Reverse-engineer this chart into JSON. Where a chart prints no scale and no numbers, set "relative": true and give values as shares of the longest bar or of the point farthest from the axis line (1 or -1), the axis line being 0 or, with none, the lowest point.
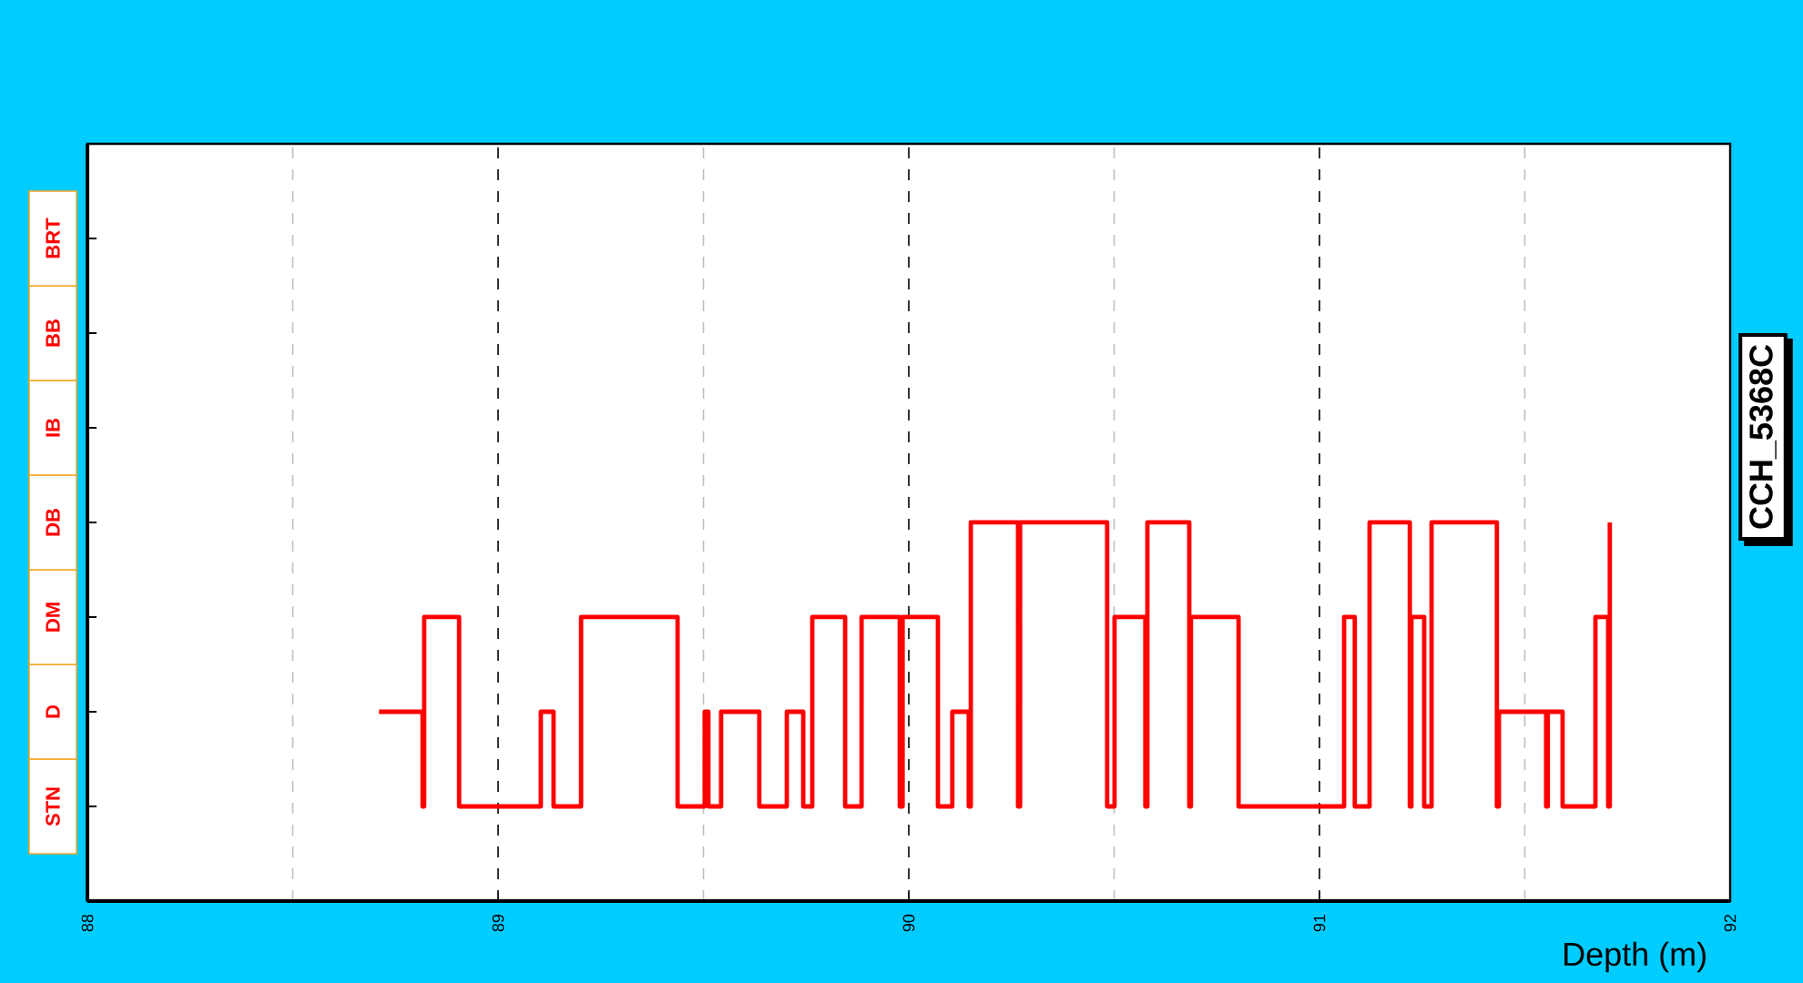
{
  "chart_data": {
    "type": "step",
    "title": "CCH_5368C",
    "xlabel": "Depth (m)",
    "color": "#ff0000",
    "grid": "x",
    "relative": true,
    "xlim": [
      88,
      92
    ],
    "xticks": [
      88,
      89,
      90,
      91,
      92
    ],
    "annotations": [
      "STN",
      "D",
      "DM",
      "DB",
      "IB",
      "BB",
      "BRT"
    ],
    "x": [
      88.71,
      88.816,
      88.82,
      88.905,
      89.104,
      89.135,
      89.202,
      89.437,
      89.503,
      89.512,
      89.543,
      89.636,
      89.703,
      89.743,
      89.765,
      89.845,
      89.885,
      89.978,
      89.985,
      90.071,
      90.106,
      90.146,
      90.151,
      90.266,
      90.271,
      90.483,
      90.501,
      90.576,
      90.581,
      90.683,
      90.687,
      90.803,
      91.06,
      91.086,
      91.122,
      91.22,
      91.224,
      91.255,
      91.273,
      91.432,
      91.437,
      91.552,
      91.556,
      91.592,
      91.672,
      91.703,
      91.707
    ],
    "values": [
      0.5,
      0.25,
      0.75,
      0.25,
      0.5,
      0.25,
      0.75,
      0.25,
      0.5,
      0.25,
      0.5,
      0.25,
      0.5,
      0.25,
      0.75,
      0.25,
      0.75,
      0.25,
      0.75,
      0.25,
      0.5,
      0.25,
      1,
      0.25,
      1,
      0.25,
      0.75,
      0.25,
      1,
      0.25,
      0.75,
      0.25,
      0.75,
      0.25,
      1,
      0.25,
      0.75,
      0.25,
      1,
      0.25,
      0.5,
      0.25,
      0.5,
      0.25,
      0.75,
      0.25,
      1
    ]
  }
}
